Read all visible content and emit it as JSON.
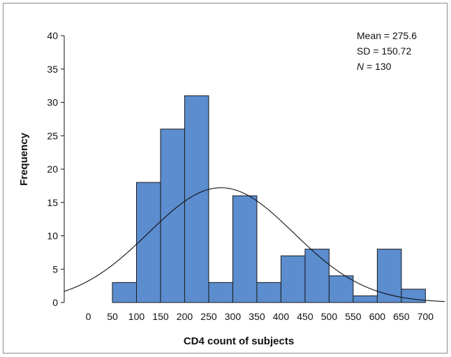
{
  "chart_data": {
    "type": "bar",
    "subtype": "histogram",
    "bin_width": 50,
    "bins": [
      {
        "from": 50,
        "to": 100,
        "count": 3
      },
      {
        "from": 100,
        "to": 150,
        "count": 18
      },
      {
        "from": 150,
        "to": 200,
        "count": 26
      },
      {
        "from": 200,
        "to": 250,
        "count": 31
      },
      {
        "from": 250,
        "to": 300,
        "count": 3
      },
      {
        "from": 300,
        "to": 350,
        "count": 16
      },
      {
        "from": 350,
        "to": 400,
        "count": 3
      },
      {
        "from": 400,
        "to": 450,
        "count": 7
      },
      {
        "from": 450,
        "to": 500,
        "count": 8
      },
      {
        "from": 500,
        "to": 550,
        "count": 4
      },
      {
        "from": 550,
        "to": 600,
        "count": 1
      },
      {
        "from": 600,
        "to": 650,
        "count": 8
      },
      {
        "from": 650,
        "to": 700,
        "count": 2
      }
    ],
    "xlabel": "CD4 count of subjects",
    "ylabel": "Frequency",
    "xticks": [
      0,
      50,
      100,
      150,
      200,
      250,
      300,
      350,
      400,
      450,
      500,
      550,
      600,
      650,
      700
    ],
    "yticks": [
      0,
      5,
      10,
      15,
      20,
      25,
      30,
      35,
      40
    ],
    "xlim": [
      -50,
      740
    ],
    "ylim": [
      0,
      42
    ],
    "grid": false,
    "bar_color": "#5b8dcf",
    "bar_edge_color": "#1a1a1a",
    "normal_curve": {
      "mean": 275.6,
      "sd": 150.72,
      "n": 130
    },
    "stats": {
      "mean_line": "Mean = 275.6",
      "sd_line": "SD = 150.72",
      "n_label": "N",
      "n_value": " = 130"
    }
  }
}
